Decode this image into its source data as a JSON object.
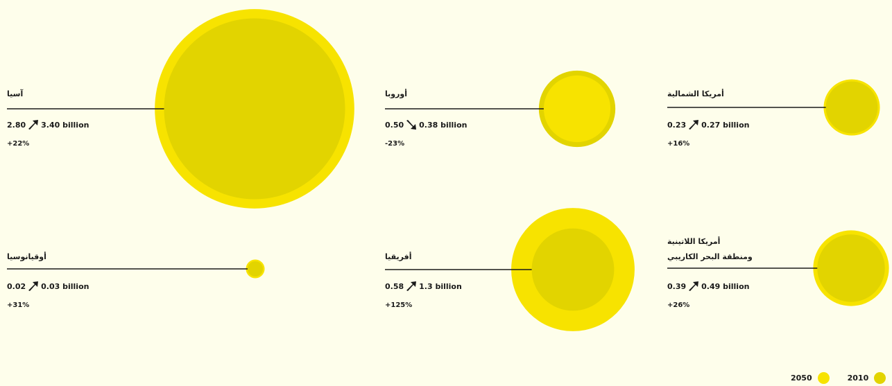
{
  "colors": {
    "y2050": "#f7e300",
    "y2010": "#e2d400",
    "bg": "#fefeeb",
    "line": "#1a1a1a"
  },
  "chart_data": {
    "type": "bubble",
    "unit": "billion",
    "regions": [
      {
        "name": "آسيا",
        "v2010": "2.80",
        "v2050": "3.40 billion",
        "trend": "up",
        "change": "+22%",
        "p2010": 2.8,
        "p2050": 3.4
      },
      {
        "name": "أوروبا",
        "v2010": "0.50",
        "v2050": "0.38 billion",
        "trend": "down",
        "change": "-23%",
        "p2010": 0.5,
        "p2050": 0.38
      },
      {
        "name": "أمريكا الشمالية",
        "v2010": "0.23",
        "v2050": "0.27 billion",
        "trend": "up",
        "change": "+16%",
        "p2010": 0.23,
        "p2050": 0.27
      },
      {
        "name": "أوقيانوسيا",
        "v2010": "0.02",
        "v2050": "0.03 billion",
        "trend": "up",
        "change": "+31%",
        "p2010": 0.02,
        "p2050": 0.03
      },
      {
        "name": "أفريقيا",
        "v2010": "0.58",
        "v2050": "1.3 billion",
        "trend": "up",
        "change": "+125%",
        "p2010": 0.58,
        "p2050": 1.3
      },
      {
        "name": "أمريكا اللاتينية ومنطقة البحر الكاريبي",
        "name_line1": "أمريكا اللاتينية",
        "name_line2": "ومنطقة البحر الكاريبي",
        "v2010": "0.39",
        "v2050": "0.49 billion",
        "trend": "up",
        "change": "+26%",
        "p2010": 0.39,
        "p2050": 0.49
      }
    ],
    "legend": [
      {
        "label": "2050",
        "color": "#f7e300"
      },
      {
        "label": "2010",
        "color": "#e2d400"
      }
    ]
  }
}
